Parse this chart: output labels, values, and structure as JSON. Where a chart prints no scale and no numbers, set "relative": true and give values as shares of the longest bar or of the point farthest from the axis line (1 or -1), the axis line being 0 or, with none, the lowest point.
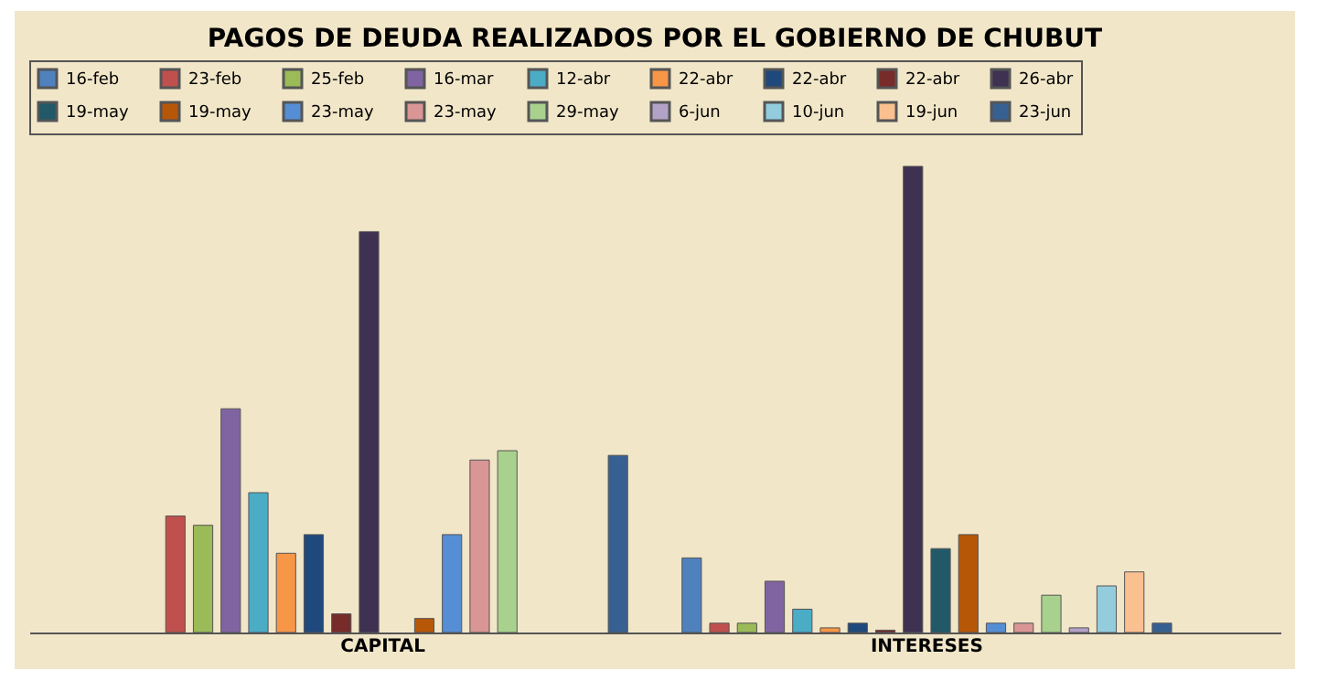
{
  "chart_data": {
    "type": "bar",
    "title": "PAGOS DE DEUDA REALIZADOS POR EL GOBIERNO DE CHUBUT",
    "categories": [
      "CAPITAL",
      "INTERESES"
    ],
    "relative": true,
    "legend": "top",
    "series": [
      {
        "name": "16-feb",
        "color": "#4f81bd",
        "values": [
          null,
          0.16
        ]
      },
      {
        "name": "23-feb",
        "color": "#c0504d",
        "values": [
          0.25,
          0.02
        ]
      },
      {
        "name": "25-feb",
        "color": "#9bbb59",
        "values": [
          0.23,
          0.02
        ]
      },
      {
        "name": "16-mar",
        "color": "#8064a2",
        "values": [
          0.48,
          0.11
        ]
      },
      {
        "name": "12-abr",
        "color": "#4bacc6",
        "values": [
          0.3,
          0.05
        ]
      },
      {
        "name": "22-abr",
        "color": "#f79646",
        "values": [
          0.17,
          0.01
        ]
      },
      {
        "name": "22-abr",
        "color": "#1f497d",
        "values": [
          0.21,
          0.02
        ]
      },
      {
        "name": "22-abr",
        "color": "#772c2a",
        "values": [
          0.04,
          0.005
        ]
      },
      {
        "name": "26-abr",
        "color": "#3f3151",
        "values": [
          0.86,
          1
        ]
      },
      {
        "name": "19-may",
        "color": "#215968",
        "values": [
          null,
          0.18
        ]
      },
      {
        "name": "19-may",
        "color": "#b65708",
        "values": [
          0.03,
          0.21
        ]
      },
      {
        "name": "23-may",
        "color": "#558ed5",
        "values": [
          0.21,
          0.02
        ]
      },
      {
        "name": "23-may",
        "color": "#d99694",
        "values": [
          0.37,
          0.02
        ]
      },
      {
        "name": "29-may",
        "color": "#a9d18e",
        "values": [
          0.39,
          0.08
        ]
      },
      {
        "name": "6-jun",
        "color": "#b3a2c7",
        "values": [
          null,
          0.01
        ]
      },
      {
        "name": "10-jun",
        "color": "#93cddd",
        "values": [
          null,
          0.1
        ]
      },
      {
        "name": "19-jun",
        "color": "#fac090",
        "values": [
          null,
          0.13
        ]
      },
      {
        "name": "23-jun",
        "color": "#376092",
        "values": [
          0.38,
          0.02
        ]
      }
    ]
  }
}
